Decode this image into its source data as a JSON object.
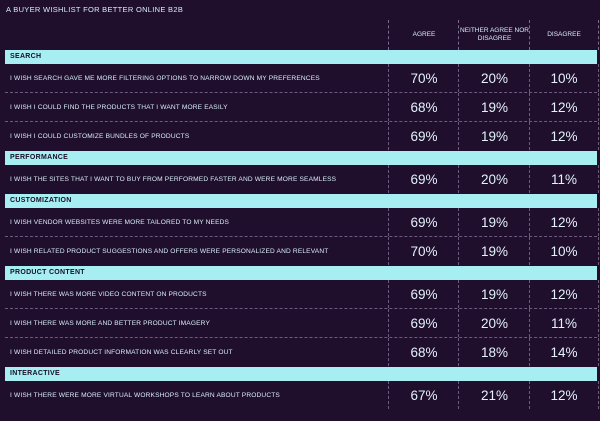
{
  "title": "A BUYER WISHLIST FOR BETTER ONLINE B2B",
  "chart_data": {
    "type": "table",
    "columns": [
      "AGREE",
      "NEITHER AGREE NOR DISAGREE",
      "DISAGREE"
    ],
    "sections": [
      {
        "name": "SEARCH",
        "rows": [
          {
            "label": "I WISH SEARCH GAVE ME MORE FILTERING OPTIONS TO NARROW DOWN MY PREFERENCES",
            "values": [
              "70%",
              "20%",
              "10%"
            ]
          },
          {
            "label": "I WISH I COULD FIND THE PRODUCTS THAT I WANT MORE EASILY",
            "values": [
              "68%",
              "19%",
              "12%"
            ]
          },
          {
            "label": "I WISH I COULD CUSTOMIZE BUNDLES OF PRODUCTS",
            "values": [
              "69%",
              "19%",
              "12%"
            ]
          }
        ]
      },
      {
        "name": "PERFORMANCE",
        "rows": [
          {
            "label": "I WISH THE SITES THAT I WANT TO BUY FROM PERFORMED FASTER AND WERE MORE SEAMLESS",
            "values": [
              "69%",
              "20%",
              "11%"
            ]
          }
        ]
      },
      {
        "name": "CUSTOMIZATION",
        "rows": [
          {
            "label": "I WISH VENDOR WEBSITES WERE MORE TAILORED TO MY NEEDS",
            "values": [
              "69%",
              "19%",
              "12%"
            ]
          },
          {
            "label": "I WISH RELATED PRODUCT SUGGESTIONS AND OFFERS WERE PERSONALIZED AND RELEVANT",
            "values": [
              "70%",
              "19%",
              "10%"
            ]
          }
        ]
      },
      {
        "name": "PRODUCT CONTENT",
        "rows": [
          {
            "label": "I WISH THERE WAS MORE VIDEO CONTENT ON PRODUCTS",
            "values": [
              "69%",
              "19%",
              "12%"
            ]
          },
          {
            "label": "I WISH THERE WAS MORE AND BETTER PRODUCT IMAGERY",
            "values": [
              "69%",
              "20%",
              "11%"
            ]
          },
          {
            "label": "I WISH DETAILED PRODUCT INFORMATION WAS CLEARLY SET OUT",
            "values": [
              "68%",
              "18%",
              "14%"
            ]
          }
        ]
      },
      {
        "name": "INTERACTIVE",
        "rows": [
          {
            "label": "I WISH THERE WERE MORE VIRTUAL WORKSHOPS TO LEARN ABOUT PRODUCTS",
            "values": [
              "67%",
              "21%",
              "12%"
            ]
          }
        ]
      }
    ]
  }
}
